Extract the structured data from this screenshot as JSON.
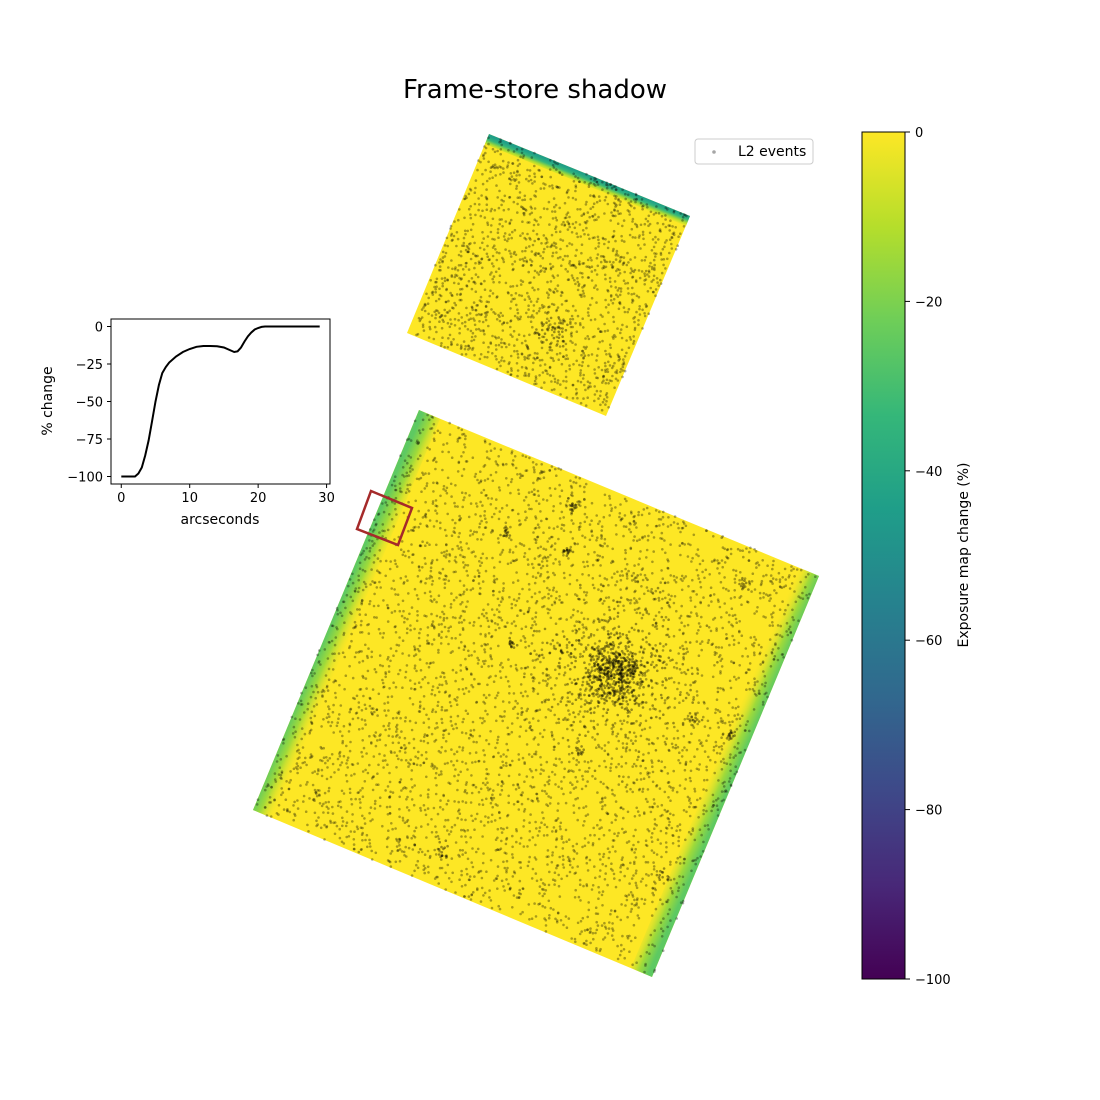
{
  "chart_data": [
    {
      "type": "scatter",
      "title": "Frame-store shadow",
      "legend": {
        "label": "L2 events",
        "placement": "top-right"
      },
      "colorbar": {
        "label": "Exposure map change (%)",
        "colormap": "viridis",
        "range": [
          -100,
          0
        ],
        "ticks": [
          0,
          -20,
          -40,
          -60,
          -80,
          -100
        ],
        "tick_labels": [
          "0",
          "−20",
          "−40",
          "−60",
          "−80",
          "−100"
        ]
      },
      "chips": [
        {
          "name": "upper chip",
          "shadow_edge": "top edge",
          "shadow_min_pct": -30
        },
        {
          "name": "lower chip",
          "shadow_edge": "left and right edges",
          "shadow_min_pct": -20
        }
      ],
      "highlight_box": {
        "color": "#a52a2a"
      },
      "colors": {
        "fill": "#fde725",
        "events": "#000000",
        "box": "#a52a2a"
      }
    },
    {
      "type": "line",
      "xlabel": "arcseconds",
      "ylabel": "% change",
      "xlim": [
        -1.5,
        30.5
      ],
      "ylim": [
        -105,
        5
      ],
      "xticks": [
        0,
        10,
        20,
        30
      ],
      "yticks": [
        0,
        -25,
        -50,
        -75,
        -100
      ],
      "ytick_labels": [
        "0",
        "−25",
        "−50",
        "−75",
        "−100"
      ],
      "x": [
        0,
        1,
        2,
        2.5,
        3,
        3.5,
        4,
        4.5,
        5,
        5.5,
        6,
        6.5,
        7,
        8,
        9,
        10,
        11,
        12,
        13,
        14,
        15,
        16,
        16.5,
        17,
        17.5,
        18,
        18.5,
        19,
        19.5,
        20,
        20.5,
        21,
        21.5,
        22,
        23,
        25,
        27,
        29
      ],
      "y": [
        -100,
        -100,
        -100,
        -98,
        -94,
        -86,
        -76,
        -63,
        -50,
        -39,
        -31,
        -27,
        -24,
        -20,
        -17,
        -15,
        -13.5,
        -13,
        -13,
        -13.2,
        -14,
        -16,
        -17,
        -16.5,
        -14,
        -10,
        -6.5,
        -4,
        -2,
        -1,
        -0.3,
        0,
        0,
        0,
        0,
        0,
        0,
        0
      ],
      "color": "#000000"
    }
  ]
}
